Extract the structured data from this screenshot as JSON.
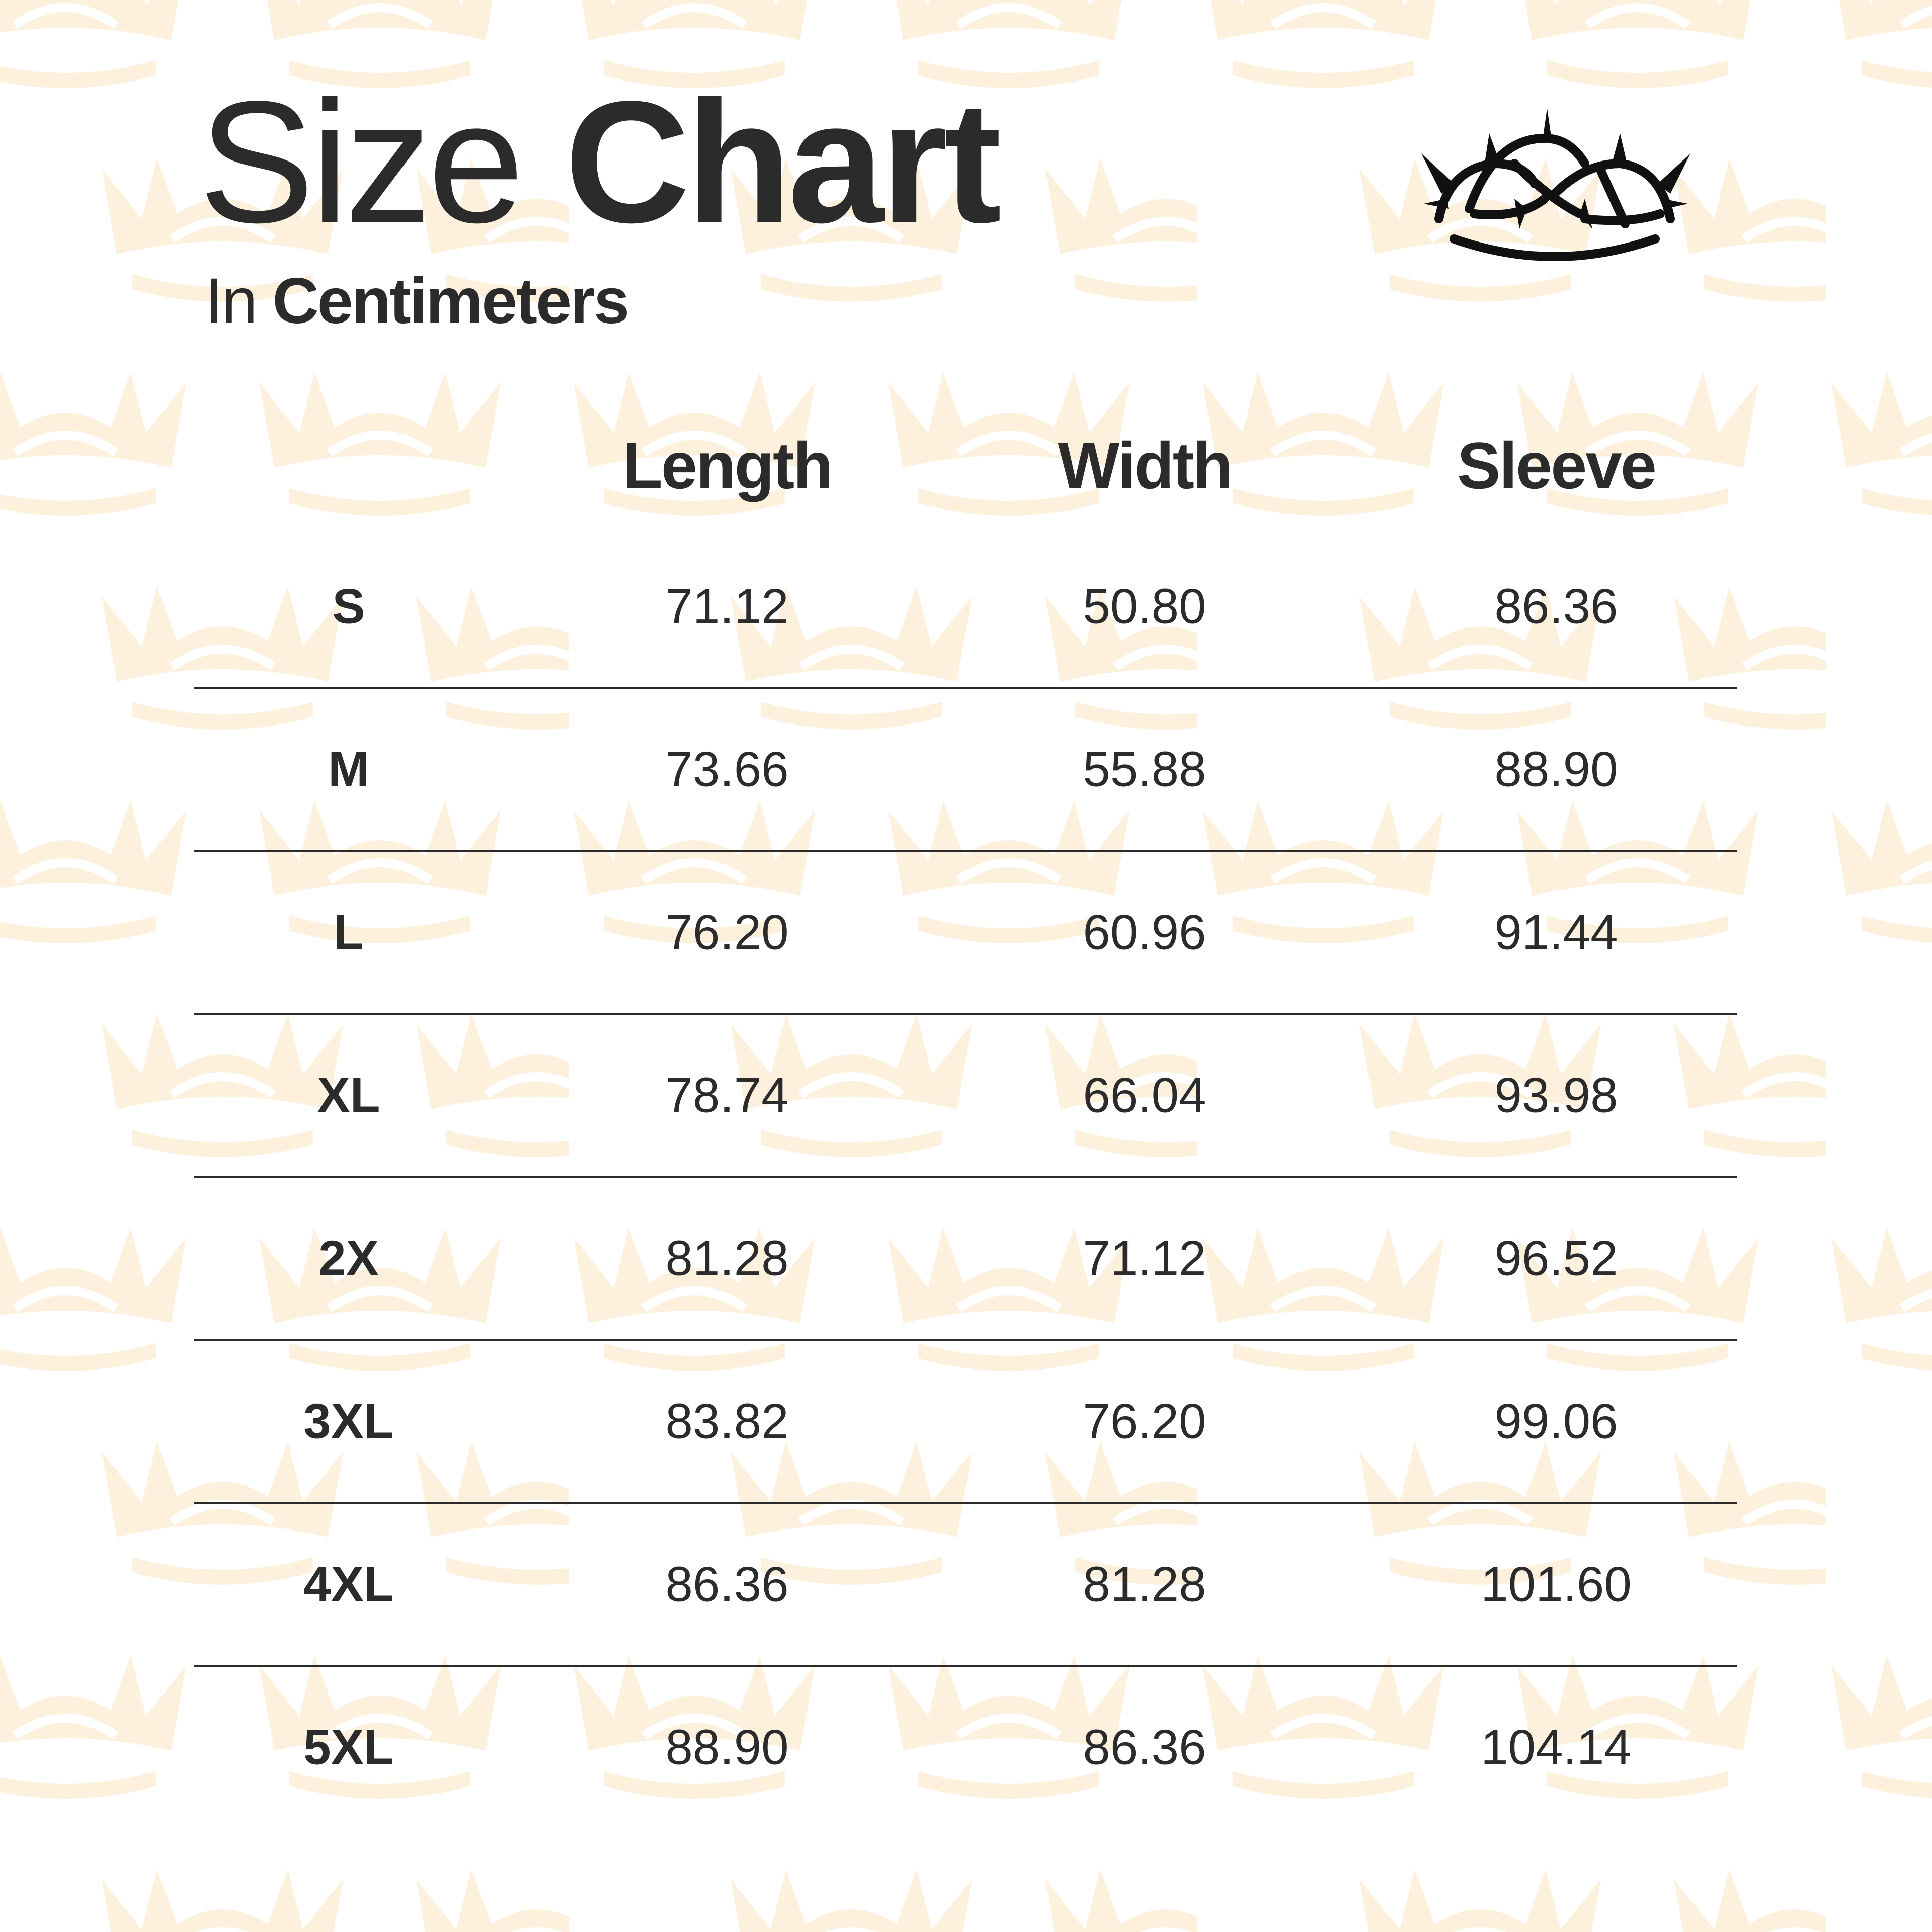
{
  "title": {
    "light": "Size",
    "bold": "Chart"
  },
  "subtitle": {
    "light": "In",
    "bold": "Centimeters"
  },
  "logo": "crown-of-thorns-icon",
  "colors": {
    "text": "#2b2b2b",
    "pattern": "#fdeed8",
    "background": "#ffffff"
  },
  "table": {
    "headers": [
      "",
      "Length",
      "Width",
      "Sleeve"
    ],
    "rows": [
      {
        "size": "S",
        "length": "71.12",
        "width": "50.80",
        "sleeve": "86.36"
      },
      {
        "size": "M",
        "length": "73.66",
        "width": "55.88",
        "sleeve": "88.90"
      },
      {
        "size": "L",
        "length": "76.20",
        "width": "60.96",
        "sleeve": "91.44"
      },
      {
        "size": "XL",
        "length": "78.74",
        "width": "66.04",
        "sleeve": "93.98"
      },
      {
        "size": "2X",
        "length": "81.28",
        "width": "71.12",
        "sleeve": "96.52"
      },
      {
        "size": "3XL",
        "length": "83.82",
        "width": "76.20",
        "sleeve": "99.06"
      },
      {
        "size": "4XL",
        "length": "86.36",
        "width": "81.28",
        "sleeve": "101.60"
      },
      {
        "size": "5XL",
        "length": "88.90",
        "width": "86.36",
        "sleeve": "104.14"
      }
    ]
  }
}
